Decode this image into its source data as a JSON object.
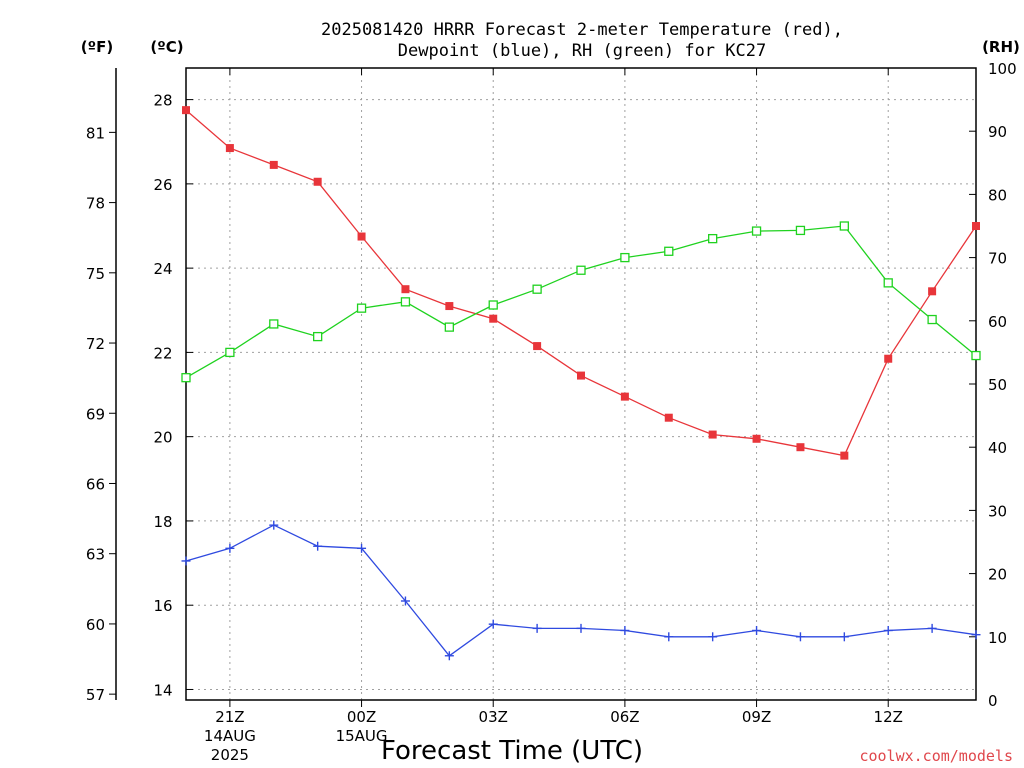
{
  "title_lines": [
    "2025081420 HRRR Forecast 2-meter Temperature (red),",
    "Dewpoint (blue), RH (green) for KC27"
  ],
  "unit_labels": {
    "fahrenheit": "(ºF)",
    "celsius": "(ºC)",
    "rh": "(RH)"
  },
  "xlabel": "Forecast Time (UTC)",
  "credit": "coolwx.com/models",
  "colors": {
    "temperature": "#e8353a",
    "dewpoint": "#2f4ae0",
    "rh": "#1fd21f"
  },
  "chart_data": {
    "type": "line",
    "title": "2025081420 HRRR Forecast 2-meter Temperature (red), Dewpoint (blue), RH (green) for KC27",
    "xlabel": "Forecast Time (UTC)",
    "x_hours": [
      20,
      21,
      22,
      23,
      24,
      25,
      26,
      27,
      28,
      29,
      30,
      31,
      32,
      33,
      34,
      35,
      36,
      37,
      38
    ],
    "x_tick_labels": [
      {
        "hour": 21,
        "lines": [
          "21Z",
          "14AUG",
          "2025"
        ]
      },
      {
        "hour": 24,
        "lines": [
          "00Z",
          "15AUG"
        ]
      },
      {
        "hour": 27,
        "lines": [
          "03Z"
        ]
      },
      {
        "hour": 30,
        "lines": [
          "06Z"
        ]
      },
      {
        "hour": 33,
        "lines": [
          "09Z"
        ]
      },
      {
        "hour": 36,
        "lines": [
          "12Z"
        ]
      }
    ],
    "xlim": [
      20,
      38
    ],
    "celsius_axis": {
      "label": "(ºC)",
      "ticks": [
        14,
        16,
        18,
        20,
        22,
        24,
        26,
        28
      ],
      "ylim": [
        13.75,
        28.75
      ]
    },
    "fahrenheit_axis": {
      "label": "(ºF)",
      "ticks": [
        57,
        60,
        63,
        66,
        69,
        72,
        75,
        78,
        81
      ]
    },
    "rh_axis": {
      "label": "(RH)",
      "ticks": [
        0,
        10,
        20,
        30,
        40,
        50,
        60,
        70,
        80,
        90,
        100
      ],
      "ylim": [
        0,
        100
      ]
    },
    "grid": true,
    "series": [
      {
        "color": "red",
        "axis": "celsius",
        "marker": "filled-square",
        "values": [
          27.75,
          26.85,
          26.45,
          26.05,
          24.75,
          23.5,
          23.1,
          22.8,
          22.15,
          21.45,
          20.95,
          20.45,
          20.05,
          19.95,
          19.75,
          19.55,
          21.85,
          23.45,
          25.0
        ]
      },
      {
        "color": "blue",
        "axis": "celsius",
        "marker": "plus",
        "values": [
          17.05,
          17.35,
          17.9,
          17.4,
          17.35,
          16.1,
          14.8,
          15.55,
          15.45,
          15.45,
          15.4,
          15.25,
          15.25,
          15.4,
          15.25,
          15.25,
          15.4,
          15.45,
          15.3
        ]
      },
      {
        "color": "green",
        "axis": "rh",
        "marker": "open-square",
        "values": [
          51,
          55,
          59.5,
          57.5,
          62,
          63,
          59,
          62.5,
          65,
          68,
          70,
          71,
          73,
          74.2,
          74.3,
          75,
          66,
          60.2,
          54.5
        ]
      }
    ]
  }
}
